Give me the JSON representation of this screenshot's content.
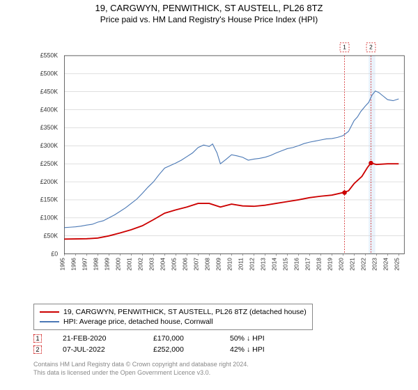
{
  "title": {
    "main": "19, CARGWYN, PENWITHICK, ST AUSTELL, PL26 8TZ",
    "sub": "Price paid vs. HM Land Registry's House Price Index (HPI)",
    "fontsize_main": 13,
    "fontsize_sub": 12
  },
  "chart": {
    "type": "dual-line",
    "background_color": "#ffffff",
    "grid_color": "#cccccc",
    "axis_color": "#333333",
    "xlim": [
      1995,
      2025.5
    ],
    "ylim": [
      0,
      550000
    ],
    "ytick_step": 50000,
    "yticks": [
      "£0",
      "£50K",
      "£100K",
      "£150K",
      "£200K",
      "£250K",
      "£300K",
      "£350K",
      "£400K",
      "£450K",
      "£500K",
      "£550K"
    ],
    "xticks": [
      "1995",
      "1996",
      "1997",
      "1998",
      "1999",
      "2000",
      "2001",
      "2002",
      "2003",
      "2004",
      "2005",
      "2006",
      "2007",
      "2008",
      "2009",
      "2010",
      "2011",
      "2012",
      "2013",
      "2014",
      "2015",
      "2016",
      "2017",
      "2018",
      "2019",
      "2020",
      "2021",
      "2022",
      "2023",
      "2024",
      "2025"
    ],
    "highlight_band": {
      "x_start": 2022.3,
      "x_end": 2022.9,
      "color": "#eaf2fb"
    },
    "series": [
      {
        "name": "property",
        "label": "19, CARGWYN, PENWITHICK, ST AUSTELL, PL26 8TZ (detached house)",
        "color": "#cc0000",
        "line_width": 2,
        "data": [
          [
            1995,
            41000
          ],
          [
            1996,
            41500
          ],
          [
            1997,
            42000
          ],
          [
            1998,
            44000
          ],
          [
            1999,
            50000
          ],
          [
            2000,
            58000
          ],
          [
            2001,
            67000
          ],
          [
            2002,
            78000
          ],
          [
            2003,
            95000
          ],
          [
            2004,
            113000
          ],
          [
            2005,
            122000
          ],
          [
            2006,
            130000
          ],
          [
            2007,
            140000
          ],
          [
            2008,
            140000
          ],
          [
            2009,
            130000
          ],
          [
            2010,
            138000
          ],
          [
            2011,
            133000
          ],
          [
            2012,
            132000
          ],
          [
            2013,
            135000
          ],
          [
            2014,
            140000
          ],
          [
            2015,
            145000
          ],
          [
            2016,
            150000
          ],
          [
            2017,
            156000
          ],
          [
            2018,
            160000
          ],
          [
            2019,
            163000
          ],
          [
            2020,
            170000
          ],
          [
            2020.5,
            175000
          ],
          [
            2021,
            195000
          ],
          [
            2021.7,
            215000
          ],
          [
            2022.2,
            240000
          ],
          [
            2022.5,
            252000
          ],
          [
            2023,
            248000
          ],
          [
            2024,
            250000
          ],
          [
            2025,
            250000
          ]
        ]
      },
      {
        "name": "hpi",
        "label": "HPI: Average price, detached house, Cornwall",
        "color": "#4a78b5",
        "line_width": 1.2,
        "data": [
          [
            1995,
            73000
          ],
          [
            1995.5,
            74000
          ],
          [
            1996,
            75000
          ],
          [
            1996.5,
            77000
          ],
          [
            1997,
            80000
          ],
          [
            1997.5,
            82000
          ],
          [
            1998,
            88000
          ],
          [
            1998.5,
            92000
          ],
          [
            1999,
            100000
          ],
          [
            1999.5,
            108000
          ],
          [
            2000,
            118000
          ],
          [
            2000.5,
            128000
          ],
          [
            2001,
            140000
          ],
          [
            2001.5,
            152000
          ],
          [
            2002,
            168000
          ],
          [
            2002.5,
            185000
          ],
          [
            2003,
            200000
          ],
          [
            2003.5,
            220000
          ],
          [
            2004,
            238000
          ],
          [
            2004.5,
            245000
          ],
          [
            2005,
            252000
          ],
          [
            2005.5,
            260000
          ],
          [
            2006,
            270000
          ],
          [
            2006.5,
            280000
          ],
          [
            2007,
            295000
          ],
          [
            2007.5,
            302000
          ],
          [
            2008,
            298000
          ],
          [
            2008.3,
            305000
          ],
          [
            2008.7,
            280000
          ],
          [
            2009,
            250000
          ],
          [
            2009.5,
            262000
          ],
          [
            2010,
            275000
          ],
          [
            2010.5,
            272000
          ],
          [
            2011,
            268000
          ],
          [
            2011.5,
            260000
          ],
          [
            2012,
            263000
          ],
          [
            2012.5,
            265000
          ],
          [
            2013,
            268000
          ],
          [
            2013.5,
            273000
          ],
          [
            2014,
            280000
          ],
          [
            2014.5,
            286000
          ],
          [
            2015,
            292000
          ],
          [
            2015.5,
            295000
          ],
          [
            2016,
            300000
          ],
          [
            2016.5,
            306000
          ],
          [
            2017,
            310000
          ],
          [
            2017.5,
            313000
          ],
          [
            2018,
            316000
          ],
          [
            2018.5,
            319000
          ],
          [
            2019,
            320000
          ],
          [
            2019.5,
            323000
          ],
          [
            2020,
            328000
          ],
          [
            2020.5,
            340000
          ],
          [
            2021,
            370000
          ],
          [
            2021.3,
            380000
          ],
          [
            2021.6,
            395000
          ],
          [
            2022,
            410000
          ],
          [
            2022.3,
            420000
          ],
          [
            2022.6,
            440000
          ],
          [
            2022.9,
            452000
          ],
          [
            2023.2,
            448000
          ],
          [
            2023.6,
            438000
          ],
          [
            2024,
            428000
          ],
          [
            2024.5,
            425000
          ],
          [
            2025,
            430000
          ]
        ]
      }
    ],
    "markers": [
      {
        "n": "1",
        "x": 2020.14,
        "y": 170000,
        "color": "#cc0000"
      },
      {
        "n": "2",
        "x": 2022.51,
        "y": 252000,
        "color": "#cc0000"
      }
    ],
    "marker_labels_top": [
      {
        "n": "1",
        "x": 2020.14
      },
      {
        "n": "2",
        "x": 2022.51
      }
    ]
  },
  "legend": {
    "rows": [
      {
        "color": "#cc0000",
        "label": "19, CARGWYN, PENWITHICK, ST AUSTELL, PL26 8TZ (detached house)"
      },
      {
        "color": "#4a78b5",
        "label": "HPI: Average price, detached house, Cornwall"
      }
    ]
  },
  "callouts": [
    {
      "n": "1",
      "date": "21-FEB-2020",
      "price": "£170,000",
      "pct": "50%",
      "arrow": "↓",
      "suffix": "HPI"
    },
    {
      "n": "2",
      "date": "07-JUL-2022",
      "price": "£252,000",
      "pct": "42%",
      "arrow": "↓",
      "suffix": "HPI"
    }
  ],
  "footnote": {
    "line1": "Contains HM Land Registry data © Crown copyright and database right 2024.",
    "line2": "This data is licensed under the Open Government Licence v3.0."
  }
}
